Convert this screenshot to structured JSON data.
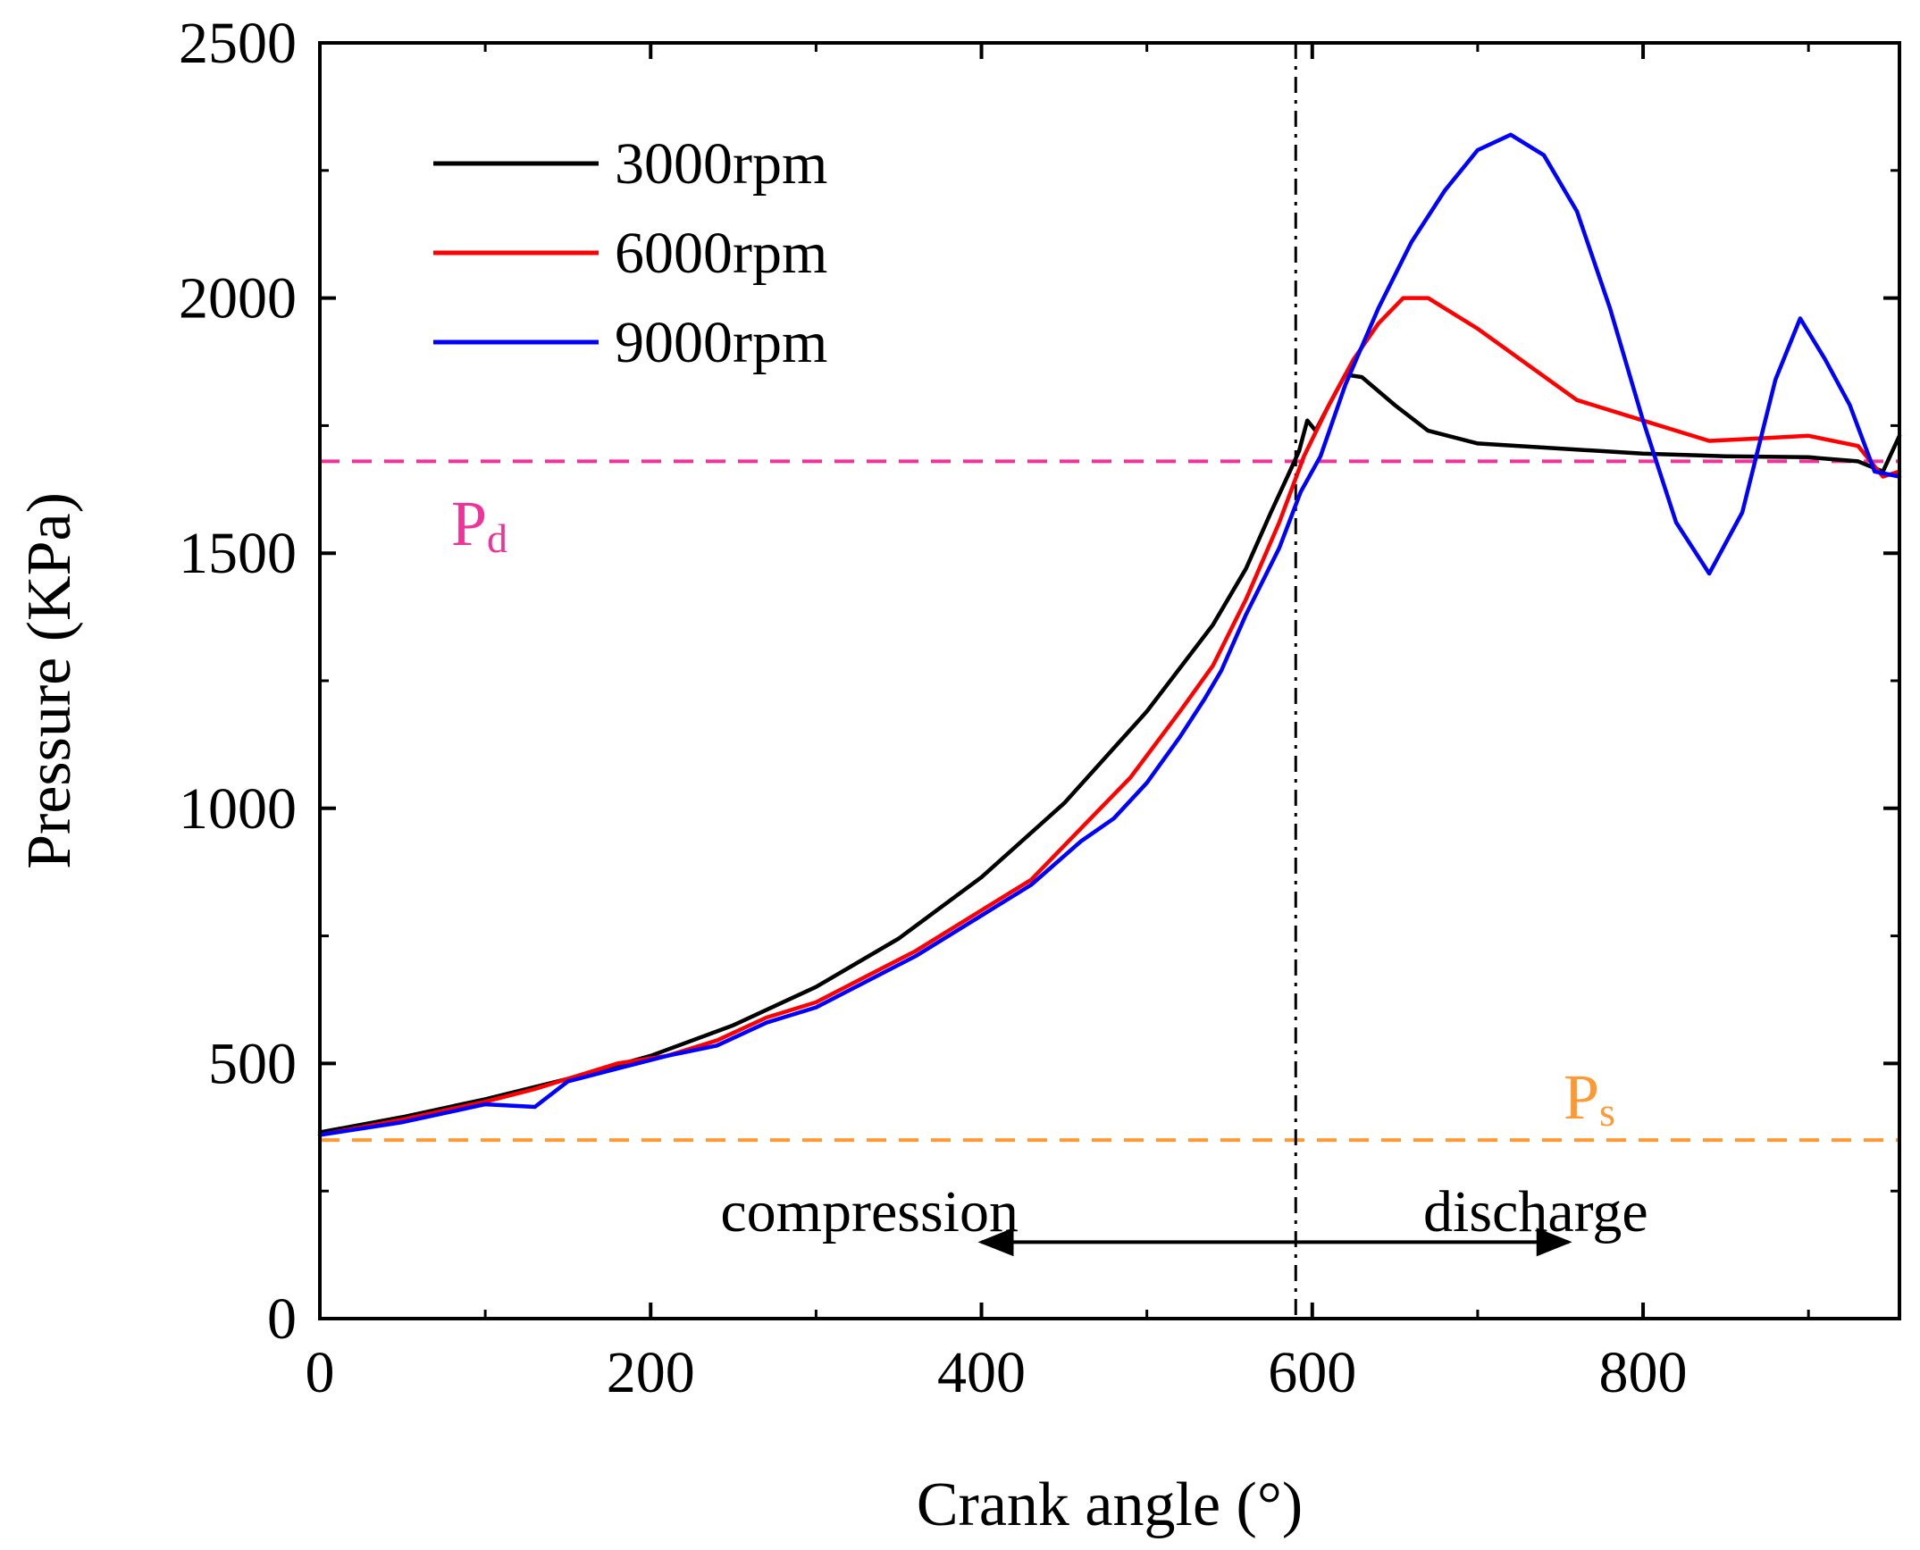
{
  "chart_data": {
    "type": "line",
    "title": "",
    "xlabel": "Crank angle (°)",
    "ylabel": "Pressure (KPa)",
    "xlim": [
      0,
      955
    ],
    "ylim": [
      0,
      2500
    ],
    "xticks": [
      0,
      200,
      400,
      600,
      800
    ],
    "yticks": [
      0,
      500,
      1000,
      1500,
      2000,
      2500
    ],
    "grid": false,
    "legend_position": "top-left",
    "series": [
      {
        "name": "3000rpm",
        "color": "#000000",
        "points": [
          [
            0,
            365
          ],
          [
            50,
            395
          ],
          [
            100,
            430
          ],
          [
            150,
            470
          ],
          [
            200,
            515
          ],
          [
            250,
            575
          ],
          [
            300,
            650
          ],
          [
            350,
            745
          ],
          [
            400,
            865
          ],
          [
            450,
            1010
          ],
          [
            500,
            1190
          ],
          [
            540,
            1360
          ],
          [
            560,
            1470
          ],
          [
            575,
            1580
          ],
          [
            585,
            1650
          ],
          [
            592,
            1700
          ],
          [
            597,
            1760
          ],
          [
            602,
            1740
          ],
          [
            610,
            1790
          ],
          [
            620,
            1850
          ],
          [
            630,
            1845
          ],
          [
            650,
            1790
          ],
          [
            670,
            1740
          ],
          [
            700,
            1715
          ],
          [
            750,
            1705
          ],
          [
            800,
            1695
          ],
          [
            850,
            1690
          ],
          [
            900,
            1688
          ],
          [
            930,
            1680
          ],
          [
            945,
            1660
          ],
          [
            955,
            1730
          ]
        ]
      },
      {
        "name": "6000rpm",
        "color": "#ff0000",
        "points": [
          [
            0,
            360
          ],
          [
            50,
            390
          ],
          [
            100,
            425
          ],
          [
            130,
            450
          ],
          [
            150,
            470
          ],
          [
            180,
            500
          ],
          [
            210,
            515
          ],
          [
            240,
            545
          ],
          [
            270,
            590
          ],
          [
            300,
            620
          ],
          [
            330,
            670
          ],
          [
            360,
            720
          ],
          [
            400,
            800
          ],
          [
            430,
            860
          ],
          [
            460,
            960
          ],
          [
            490,
            1060
          ],
          [
            520,
            1190
          ],
          [
            540,
            1280
          ],
          [
            560,
            1410
          ],
          [
            580,
            1560
          ],
          [
            595,
            1690
          ],
          [
            610,
            1790
          ],
          [
            625,
            1880
          ],
          [
            640,
            1950
          ],
          [
            655,
            2000
          ],
          [
            670,
            2000
          ],
          [
            700,
            1940
          ],
          [
            730,
            1870
          ],
          [
            760,
            1800
          ],
          [
            800,
            1760
          ],
          [
            840,
            1720
          ],
          [
            870,
            1725
          ],
          [
            900,
            1730
          ],
          [
            930,
            1710
          ],
          [
            945,
            1650
          ],
          [
            955,
            1660
          ]
        ]
      },
      {
        "name": "9000rpm",
        "color": "#0000ff",
        "points": [
          [
            0,
            360
          ],
          [
            50,
            385
          ],
          [
            100,
            420
          ],
          [
            130,
            415
          ],
          [
            150,
            465
          ],
          [
            180,
            490
          ],
          [
            210,
            515
          ],
          [
            240,
            535
          ],
          [
            270,
            580
          ],
          [
            300,
            610
          ],
          [
            330,
            660
          ],
          [
            360,
            710
          ],
          [
            400,
            790
          ],
          [
            430,
            850
          ],
          [
            460,
            935
          ],
          [
            480,
            980
          ],
          [
            500,
            1050
          ],
          [
            520,
            1140
          ],
          [
            535,
            1215
          ],
          [
            545,
            1270
          ],
          [
            560,
            1380
          ],
          [
            580,
            1510
          ],
          [
            593,
            1620
          ],
          [
            605,
            1690
          ],
          [
            620,
            1830
          ],
          [
            640,
            1980
          ],
          [
            660,
            2110
          ],
          [
            680,
            2210
          ],
          [
            700,
            2290
          ],
          [
            720,
            2320
          ],
          [
            740,
            2280
          ],
          [
            760,
            2170
          ],
          [
            780,
            1980
          ],
          [
            800,
            1760
          ],
          [
            820,
            1560
          ],
          [
            840,
            1460
          ],
          [
            860,
            1580
          ],
          [
            880,
            1840
          ],
          [
            895,
            1960
          ],
          [
            910,
            1880
          ],
          [
            925,
            1790
          ],
          [
            940,
            1660
          ],
          [
            955,
            1650
          ]
        ]
      }
    ],
    "reference_lines": [
      {
        "label": "Pd",
        "label_main": "P",
        "label_sub": "d",
        "orientation": "horizontal",
        "value": 1680,
        "color": "#ee3399",
        "style": "dashed"
      },
      {
        "label": "Ps",
        "label_main": "P",
        "label_sub": "s",
        "orientation": "horizontal",
        "value": 350,
        "color": "#ff9933",
        "style": "dashed"
      },
      {
        "label": "",
        "orientation": "vertical",
        "value": 590,
        "color": "#000000",
        "style": "dash-dot"
      }
    ],
    "annotations": [
      {
        "text": "compression",
        "x": 425,
        "y": 210
      },
      {
        "text": "discharge",
        "x": 755,
        "y": 210
      }
    ],
    "arrow": {
      "from_x": 400,
      "to_x": 755,
      "y": 150
    }
  }
}
